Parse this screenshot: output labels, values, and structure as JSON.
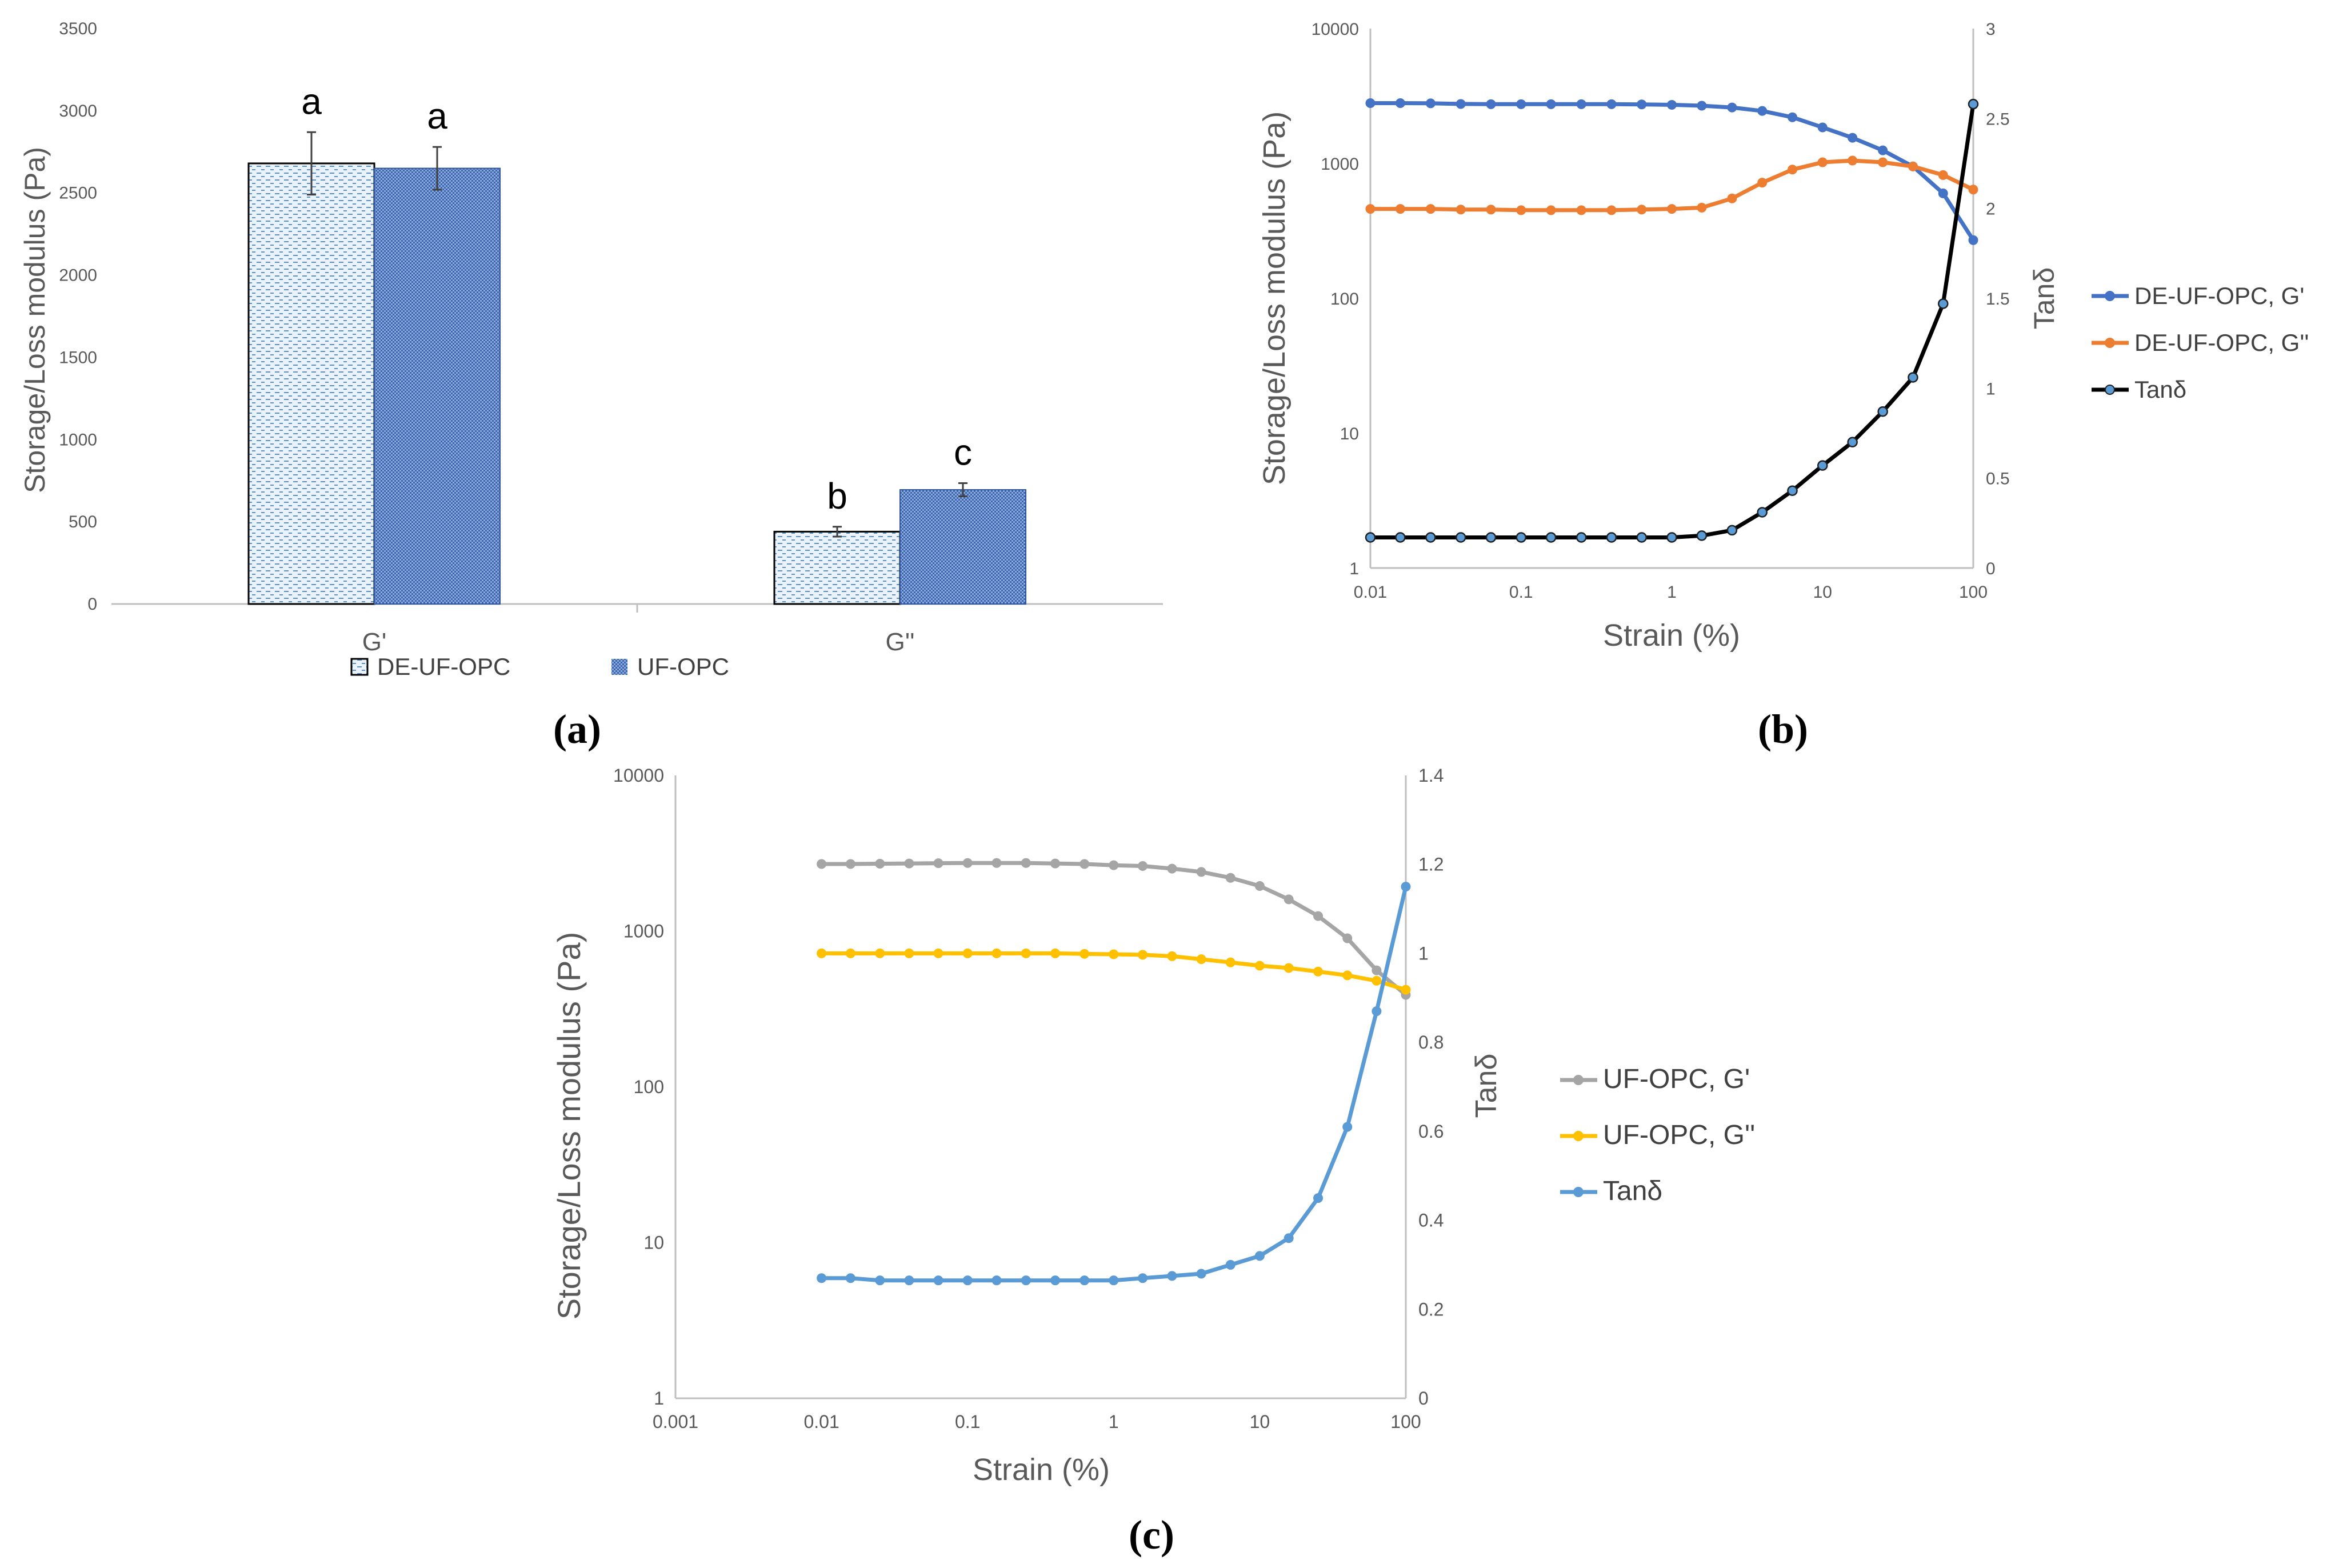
{
  "colors": {
    "de_bar_fill": "#eaf3fb",
    "de_bar_pattern": "#5b8fc7",
    "uf_bar_fill": "#4472c4",
    "blue": "#4472c4",
    "orange": "#ed7d31",
    "black": "#000000",
    "gray": "#a5a5a5",
    "yellow": "#ffc000",
    "lightblue": "#5b9bd5",
    "axis": "#bfbfbf",
    "text": "#595959"
  },
  "chart_data": [
    {
      "id": "a",
      "type": "bar",
      "panel_label": "(a)",
      "categories": [
        "G'",
        "G''"
      ],
      "series": [
        {
          "name": "DE-UF-OPC",
          "values": [
            2680,
            440
          ],
          "errors": [
            190,
            30
          ],
          "labels": [
            "a",
            "b"
          ]
        },
        {
          "name": "UF-OPC",
          "values": [
            2650,
            695
          ],
          "errors": [
            130,
            40
          ],
          "labels": [
            "a",
            "c"
          ]
        }
      ],
      "ylabel": "Storage/Loss modulus (Pa)",
      "ylim": [
        0,
        3500
      ],
      "yticks": [
        0,
        500,
        1000,
        1500,
        2000,
        2500,
        3000,
        3500
      ],
      "legend_position": "bottom",
      "grid": false
    },
    {
      "id": "b",
      "type": "line",
      "panel_label": "(b)",
      "xlabel": "Strain (%)",
      "ylabel": "Storage/Loss modulus (Pa)",
      "y2label": "Tanδ",
      "xscale": "log",
      "xlim": [
        0.01,
        100
      ],
      "xticks": [
        "0.01",
        "0.1",
        "1",
        "10",
        "100"
      ],
      "yscale": "log",
      "ylim": [
        1,
        10000
      ],
      "yticks": [
        "1",
        "10",
        "100",
        "1000",
        "10000"
      ],
      "y2lim": [
        0,
        3
      ],
      "y2ticks": [
        "0",
        "0.5",
        "1",
        "1.5",
        "2",
        "2.5",
        "3"
      ],
      "x": [
        0.01,
        0.0158,
        0.0251,
        0.0398,
        0.0631,
        0.1,
        0.158,
        0.251,
        0.398,
        0.631,
        1,
        1.58,
        2.51,
        3.98,
        6.31,
        10,
        15.8,
        25.1,
        39.8,
        63.1,
        100
      ],
      "series": [
        {
          "name": "DE-UF-OPC, G'",
          "axis": "left",
          "color_key": "blue",
          "values": [
            2800,
            2800,
            2790,
            2760,
            2750,
            2750,
            2750,
            2750,
            2750,
            2740,
            2720,
            2680,
            2600,
            2450,
            2200,
            1850,
            1550,
            1250,
            950,
            600,
            270
          ]
        },
        {
          "name": "DE-UF-OPC, G''",
          "axis": "left",
          "color_key": "orange",
          "values": [
            460,
            460,
            460,
            455,
            455,
            450,
            450,
            450,
            450,
            455,
            460,
            470,
            550,
            720,
            900,
            1020,
            1050,
            1020,
            950,
            820,
            640
          ]
        },
        {
          "name": "Tanδ",
          "axis": "right",
          "color_key": "black",
          "marker_fill": "#5b9bd5",
          "values": [
            0.17,
            0.17,
            0.17,
            0.17,
            0.17,
            0.17,
            0.17,
            0.17,
            0.17,
            0.17,
            0.17,
            0.18,
            0.21,
            0.31,
            0.43,
            0.57,
            0.7,
            0.87,
            1.06,
            1.47,
            2.58
          ]
        }
      ],
      "legend_position": "right"
    },
    {
      "id": "c",
      "type": "line",
      "panel_label": "(c)",
      "xlabel": "Strain (%)",
      "ylabel": "Storage/Loss modulus (Pa)",
      "y2label": "Tanδ",
      "xscale": "log",
      "xlim": [
        0.001,
        100
      ],
      "xticks": [
        "0.001",
        "0.01",
        "0.1",
        "1",
        "10",
        "100"
      ],
      "yscale": "log",
      "ylim": [
        1,
        10000
      ],
      "yticks": [
        "1",
        "10",
        "100",
        "1000",
        "10000"
      ],
      "y2lim": [
        0,
        1.4
      ],
      "y2ticks": [
        "0",
        "0.2",
        "0.4",
        "0.6",
        "0.8",
        "1",
        "1.2",
        "1.4"
      ],
      "x": [
        0.01,
        0.0158,
        0.0251,
        0.0398,
        0.0631,
        0.1,
        0.158,
        0.251,
        0.398,
        0.631,
        1,
        1.58,
        2.51,
        3.98,
        6.31,
        10,
        15.8,
        25.1,
        39.8,
        63.1,
        100
      ],
      "series": [
        {
          "name": "UF-OPC, G'",
          "axis": "left",
          "color_key": "gray",
          "values": [
            2700,
            2700,
            2710,
            2720,
            2730,
            2740,
            2740,
            2740,
            2720,
            2700,
            2650,
            2620,
            2520,
            2400,
            2200,
            1950,
            1600,
            1250,
            900,
            560,
            390
          ]
        },
        {
          "name": "UF-OPC, G''",
          "axis": "left",
          "color_key": "yellow",
          "values": [
            720,
            720,
            720,
            720,
            720,
            720,
            720,
            720,
            720,
            715,
            710,
            705,
            690,
            660,
            630,
            600,
            580,
            550,
            520,
            480,
            420
          ]
        },
        {
          "name": "Tanδ",
          "axis": "right",
          "color_key": "lightblue",
          "values": [
            0.27,
            0.27,
            0.265,
            0.265,
            0.265,
            0.265,
            0.265,
            0.265,
            0.265,
            0.265,
            0.265,
            0.27,
            0.275,
            0.28,
            0.3,
            0.32,
            0.36,
            0.45,
            0.61,
            0.87,
            1.15
          ]
        }
      ],
      "legend_position": "right"
    }
  ]
}
